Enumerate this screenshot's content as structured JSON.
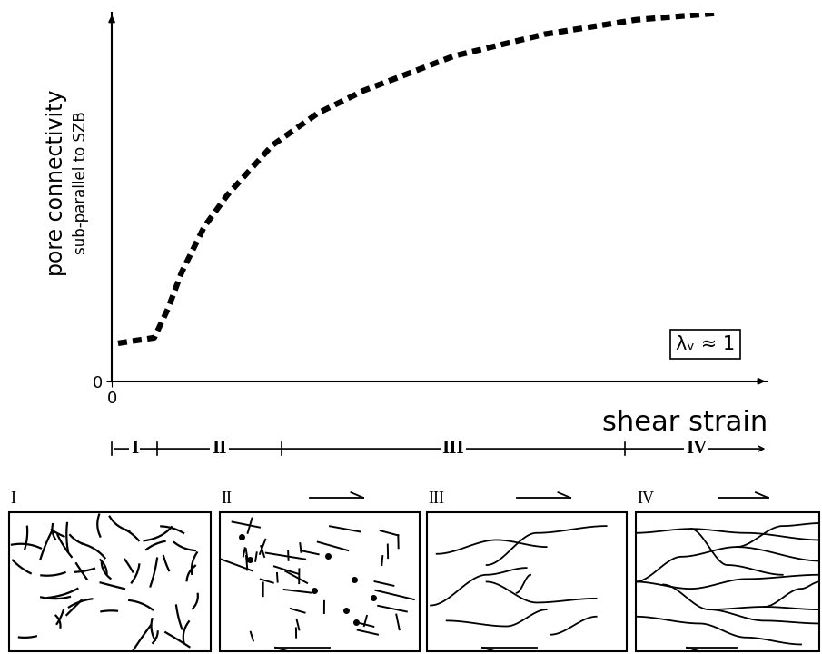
{
  "chart_data": {
    "type": "line",
    "y_label": "pore connectivity",
    "y_label_sub": "sub-parallel to SZB",
    "x_label": "shear strain",
    "annotation": "λᵥ ≈ 1",
    "x": [
      0.1,
      0.68,
      0.9,
      1.12,
      1.48,
      1.85,
      2.57,
      3.3,
      4.03,
      5.48,
      6.93,
      8.39,
      9.69
    ],
    "values": [
      1.03,
      1.18,
      1.97,
      2.96,
      4.19,
      5.05,
      6.4,
      7.27,
      7.88,
      8.82,
      9.41,
      9.8,
      9.98
    ],
    "color": "#000000",
    "line_style": "dashed",
    "xlim": [
      0,
      10.5
    ],
    "ylim": [
      0,
      10
    ],
    "xticks": [
      0
    ],
    "yticks": [
      0
    ],
    "stages": [
      {
        "label": "I",
        "start": 0,
        "end": 0.73
      },
      {
        "label": "II",
        "start": 0.73,
        "end": 2.72
      },
      {
        "label": "III",
        "start": 2.72,
        "end": 8.21
      },
      {
        "label": "IV",
        "start": 8.21,
        "end": 10.5
      }
    ],
    "panels": [
      "I",
      "II",
      "III",
      "IV"
    ]
  }
}
